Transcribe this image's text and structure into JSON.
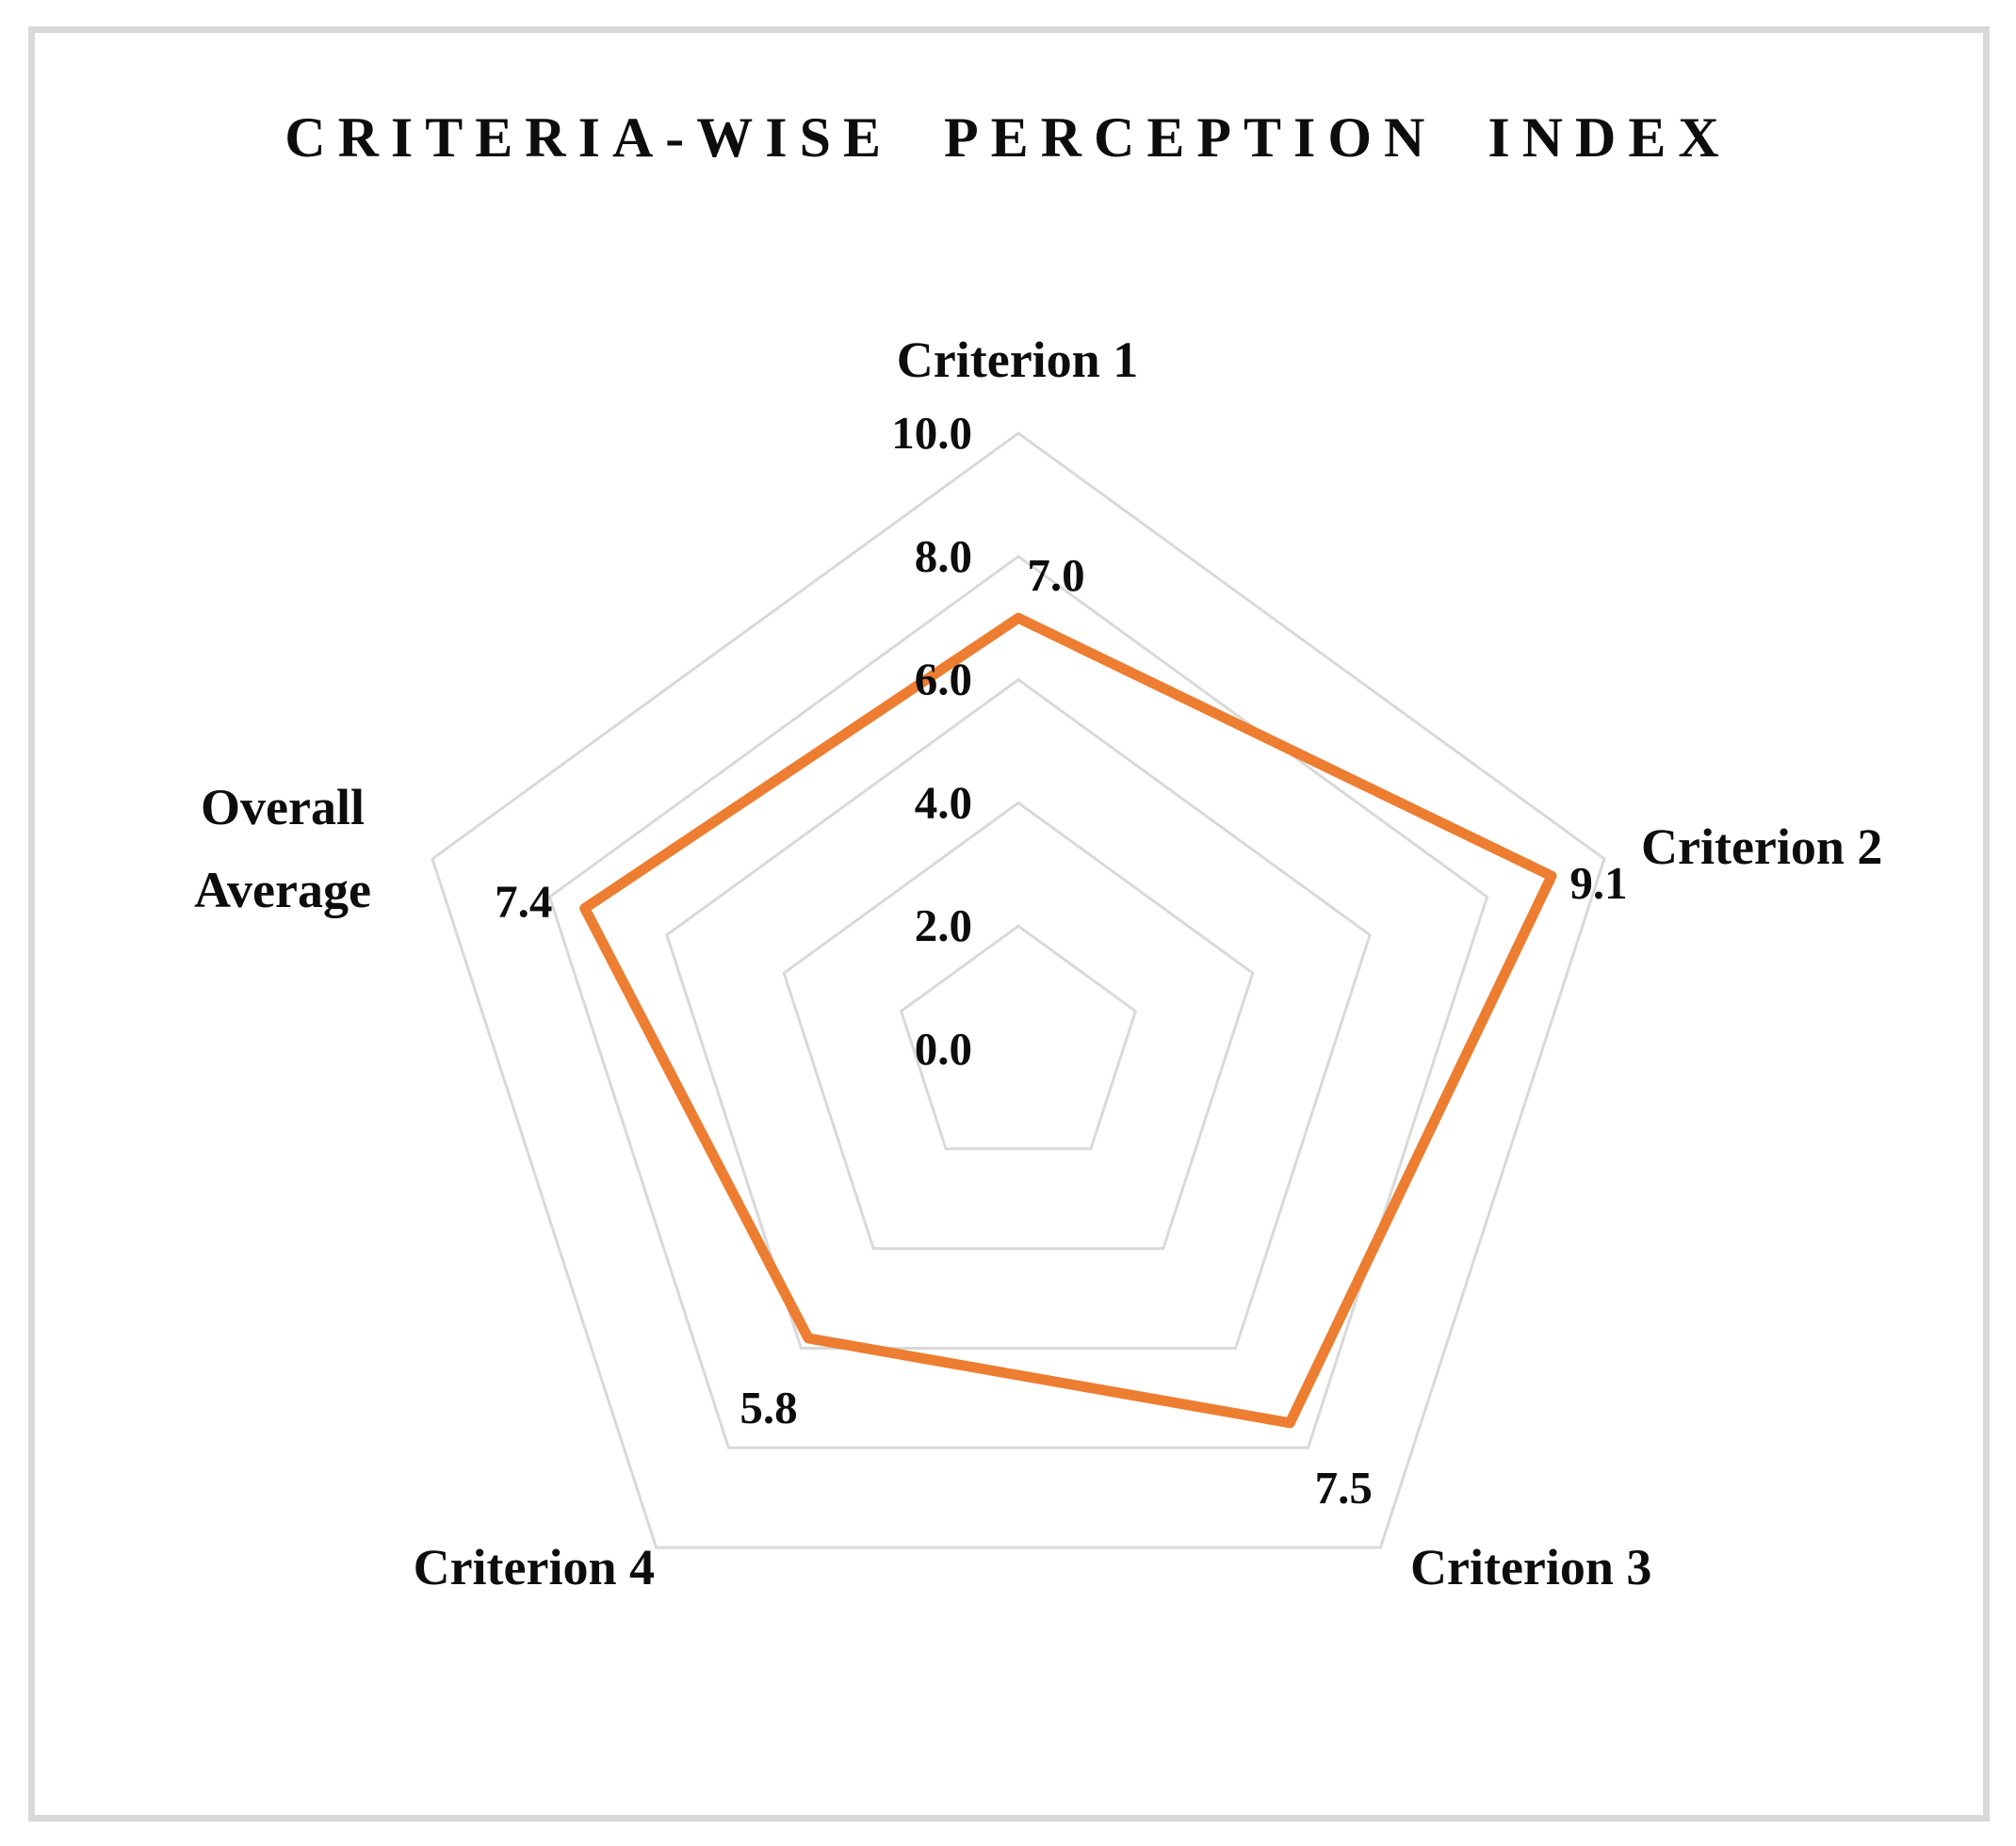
{
  "chart_data": {
    "type": "radar",
    "title": "CRITERIA-WISE PERCEPTION INDEX",
    "categories": [
      "Criterion 1",
      "Criterion 2",
      "Criterion 3",
      "Criterion 4",
      "Overall Average"
    ],
    "series": [
      {
        "values": [
          7.0,
          9.1,
          7.5,
          5.8,
          7.4
        ]
      }
    ],
    "data_labels": [
      "7.0",
      "9.1",
      "7.5",
      "5.8",
      "7.4"
    ],
    "axis": {
      "min": 0.0,
      "max": 10.0,
      "step": 2.0,
      "tick_labels": [
        "0.0",
        "2.0",
        "4.0",
        "6.0",
        "8.0",
        "10.0"
      ]
    },
    "grid": true,
    "legend": false,
    "colors": {
      "series_line": "#ED7D31",
      "gridline": "#D9D9D9",
      "frame_border": "#D9D9D9",
      "text": "#0D0D0D",
      "background": "#FFFFFF"
    }
  }
}
